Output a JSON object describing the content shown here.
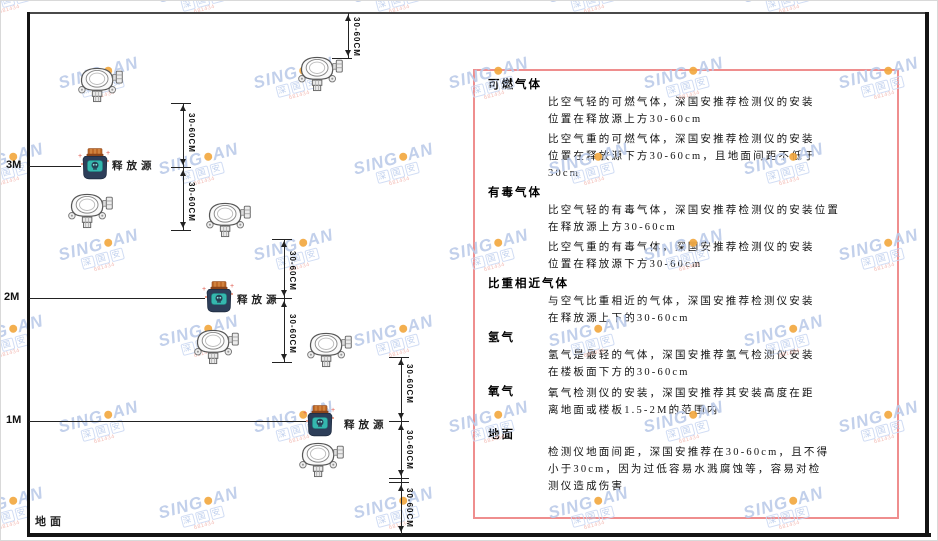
{
  "watermark": {
    "brand_left": "SING",
    "brand_right": "AN",
    "sub_chars": "深国安",
    "code": "681434"
  },
  "diagram": {
    "label_3m": "3M",
    "label_2m": "2M",
    "label_1m": "1M",
    "ground_label": "地面",
    "release_source_label": "释放源",
    "dim_label": "30-60CM"
  },
  "panel": {
    "border_color": "#ef8e8e",
    "sections": [
      {
        "heading": "可燃气体",
        "paragraphs": [
          [
            "比空气轻的可燃气体，深国安推荐检测仪的安装",
            "位置在释放源上方30-60cm"
          ],
          [
            "比空气重的可燃气体，深国安推荐检测仪的安装",
            "位置在释放源下方30-60cm，且地面间距不低于",
            "30cm"
          ]
        ]
      },
      {
        "heading": "有毒气体",
        "paragraphs": [
          [
            "比空气轻的有毒气体，深国安推荐检测仪的安装位置",
            "在释放源上方30-60cm"
          ],
          [
            "比空气重的有毒气体，深国安推荐检测仪的安装",
            "位置在释放源下方30-60cm"
          ]
        ]
      },
      {
        "heading": "比重相近气体",
        "paragraphs": [
          [
            "与空气比重相近的气体，深国安推荐检测仪安装",
            "在释放源上下的30-60cm"
          ]
        ]
      },
      {
        "heading": "氢气",
        "paragraphs": [
          [
            "氢气是最轻的气体，深国安推荐氢气检测仪安装",
            "在楼板面下方的30-60cm"
          ]
        ]
      },
      {
        "heading": "氧气",
        "inline": true,
        "paragraphs": [
          [
            "氧气检测仪的安装，深国安推荐其安装高度在距",
            "离地面或楼板1.5-2M的范围内"
          ]
        ]
      },
      {
        "heading": "地面",
        "last": true,
        "paragraphs": [
          [
            "检测仪地面间距，深国安推荐在30-60cm，且不得",
            "小于30cm，因为过低容易水溅腐蚀等，容易对检",
            "测仪造成伤害"
          ]
        ]
      }
    ]
  }
}
